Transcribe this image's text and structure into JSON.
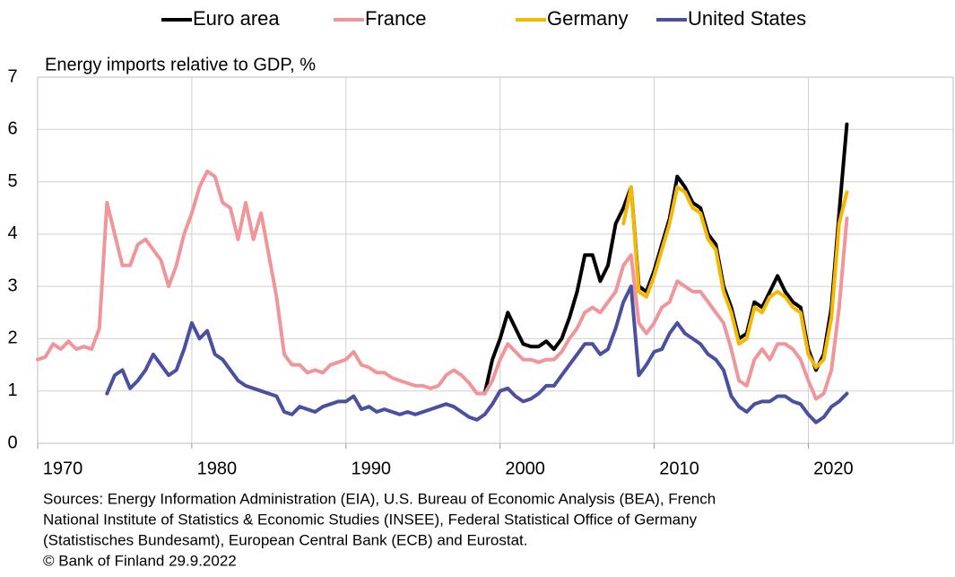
{
  "chart_data": {
    "type": "line",
    "title": "Energy imports relative to GDP, %",
    "notes": [
      "Sources: Energy Information Administration (EIA), U.S. Bureau of Economic Analysis (BEA), French",
      "National Institute of Statistics & Economic Studies (INSEE), Federal Statistical Office of Germany",
      "(Statistisches Bundesamt),  European Central Bank (ECB) and Eurostat.",
      "© Bank of Finland 29.9.2022"
    ],
    "x": [
      1970,
      1970.5,
      1971,
      1971.5,
      1972,
      1972.5,
      1973,
      1973.5,
      1974,
      1974.5,
      1975,
      1975.5,
      1976,
      1976.5,
      1977,
      1977.5,
      1978,
      1978.5,
      1979,
      1979.5,
      1980,
      1980.5,
      1981,
      1981.5,
      1982,
      1982.5,
      1983,
      1983.5,
      1984,
      1984.5,
      1985,
      1985.5,
      1986,
      1986.5,
      1987,
      1987.5,
      1988,
      1988.5,
      1989,
      1989.5,
      1990,
      1990.5,
      1991,
      1991.5,
      1992,
      1992.5,
      1993,
      1993.5,
      1994,
      1994.5,
      1995,
      1995.5,
      1996,
      1996.5,
      1997,
      1997.5,
      1998,
      1998.5,
      1999,
      1999.5,
      2000,
      2000.5,
      2001,
      2001.5,
      2002,
      2002.5,
      2003,
      2003.5,
      2004,
      2004.5,
      2005,
      2005.5,
      2006,
      2006.5,
      2007,
      2007.5,
      2008,
      2008.5,
      2009,
      2009.5,
      2010,
      2010.5,
      2011,
      2011.5,
      2012,
      2012.5,
      2013,
      2013.5,
      2014,
      2014.5,
      2015,
      2015.5,
      2016,
      2016.5,
      2017,
      2017.5,
      2018,
      2018.5,
      2019,
      2019.5,
      2020,
      2020.5,
      2021,
      2021.5,
      2022,
      2022.5
    ],
    "series": [
      {
        "name": "Euro area",
        "color": "#000000",
        "values": [
          null,
          null,
          null,
          null,
          null,
          null,
          null,
          null,
          null,
          null,
          null,
          null,
          null,
          null,
          null,
          null,
          null,
          null,
          null,
          null,
          null,
          null,
          null,
          null,
          null,
          null,
          null,
          null,
          null,
          null,
          null,
          null,
          null,
          null,
          null,
          null,
          null,
          null,
          null,
          null,
          null,
          null,
          null,
          null,
          null,
          null,
          null,
          null,
          null,
          null,
          null,
          null,
          null,
          null,
          null,
          null,
          null,
          null,
          0.95,
          1.6,
          2.0,
          2.5,
          2.2,
          1.9,
          1.85,
          1.85,
          1.95,
          1.8,
          2.0,
          2.4,
          2.9,
          3.6,
          3.6,
          3.1,
          3.4,
          4.2,
          4.5,
          4.9,
          3.0,
          2.9,
          3.3,
          3.8,
          4.3,
          5.1,
          4.9,
          4.6,
          4.5,
          4.0,
          3.8,
          3.0,
          2.6,
          2.0,
          2.1,
          2.7,
          2.6,
          2.9,
          3.2,
          2.9,
          2.7,
          2.6,
          1.8,
          1.4,
          1.7,
          2.6,
          4.4,
          6.1
        ]
      },
      {
        "name": "France",
        "color": "#f0959a",
        "values": [
          1.6,
          1.65,
          1.9,
          1.8,
          1.95,
          1.8,
          1.85,
          1.8,
          2.2,
          4.6,
          4.0,
          3.4,
          3.4,
          3.8,
          3.9,
          3.7,
          3.5,
          3.0,
          3.4,
          4.0,
          4.4,
          4.9,
          5.2,
          5.1,
          4.6,
          4.5,
          3.9,
          4.6,
          3.9,
          4.4,
          3.6,
          2.8,
          1.7,
          1.5,
          1.5,
          1.35,
          1.4,
          1.35,
          1.5,
          1.55,
          1.6,
          1.75,
          1.5,
          1.45,
          1.35,
          1.35,
          1.25,
          1.2,
          1.15,
          1.1,
          1.1,
          1.05,
          1.1,
          1.3,
          1.4,
          1.3,
          1.15,
          0.95,
          0.95,
          1.2,
          1.6,
          1.9,
          1.75,
          1.6,
          1.6,
          1.55,
          1.6,
          1.6,
          1.75,
          2.0,
          2.2,
          2.5,
          2.6,
          2.5,
          2.7,
          2.9,
          3.4,
          3.6,
          2.3,
          2.1,
          2.3,
          2.6,
          2.7,
          3.1,
          3.0,
          2.9,
          2.9,
          2.7,
          2.5,
          2.3,
          1.8,
          1.2,
          1.1,
          1.6,
          1.8,
          1.6,
          1.9,
          1.9,
          1.8,
          1.6,
          1.2,
          0.85,
          0.95,
          1.4,
          2.6,
          4.3
        ]
      },
      {
        "name": "Germany",
        "color": "#f5b800",
        "values": [
          null,
          null,
          null,
          null,
          null,
          null,
          null,
          null,
          null,
          null,
          null,
          null,
          null,
          null,
          null,
          null,
          null,
          null,
          null,
          null,
          null,
          null,
          null,
          null,
          null,
          null,
          null,
          null,
          null,
          null,
          null,
          null,
          null,
          null,
          null,
          null,
          null,
          null,
          null,
          null,
          null,
          null,
          null,
          null,
          null,
          null,
          null,
          null,
          null,
          null,
          null,
          null,
          null,
          null,
          null,
          null,
          null,
          null,
          null,
          null,
          null,
          null,
          null,
          null,
          null,
          null,
          null,
          null,
          null,
          null,
          null,
          null,
          null,
          null,
          null,
          null,
          4.2,
          4.9,
          2.9,
          2.8,
          3.2,
          3.7,
          4.2,
          4.9,
          4.8,
          4.5,
          4.4,
          3.9,
          3.7,
          2.9,
          2.5,
          1.9,
          2.0,
          2.6,
          2.5,
          2.8,
          2.9,
          2.8,
          2.6,
          2.5,
          1.7,
          1.45,
          1.6,
          2.4,
          4.2,
          4.8
        ]
      },
      {
        "name": "United States",
        "color": "#4a4fa0",
        "values": [
          null,
          null,
          null,
          null,
          null,
          null,
          null,
          null,
          null,
          0.95,
          1.3,
          1.4,
          1.05,
          1.2,
          1.4,
          1.7,
          1.5,
          1.3,
          1.4,
          1.8,
          2.3,
          2.0,
          2.15,
          1.7,
          1.6,
          1.4,
          1.2,
          1.1,
          1.05,
          1.0,
          0.95,
          0.9,
          0.6,
          0.55,
          0.7,
          0.65,
          0.6,
          0.7,
          0.75,
          0.8,
          0.8,
          0.9,
          0.65,
          0.7,
          0.6,
          0.65,
          0.6,
          0.55,
          0.6,
          0.55,
          0.6,
          0.65,
          0.7,
          0.75,
          0.7,
          0.6,
          0.5,
          0.45,
          0.55,
          0.75,
          1.0,
          1.05,
          0.9,
          0.8,
          0.85,
          0.95,
          1.1,
          1.1,
          1.3,
          1.5,
          1.7,
          1.9,
          1.9,
          1.7,
          1.8,
          2.2,
          2.7,
          3.0,
          1.3,
          1.5,
          1.75,
          1.8,
          2.1,
          2.3,
          2.1,
          2.0,
          1.9,
          1.7,
          1.6,
          1.4,
          0.9,
          0.7,
          0.6,
          0.75,
          0.8,
          0.8,
          0.9,
          0.9,
          0.8,
          0.75,
          0.55,
          0.4,
          0.5,
          0.7,
          0.8,
          0.95
        ]
      }
    ],
    "xlim": [
      1970,
      2029.4
    ],
    "xticks": [
      1970,
      1980,
      1990,
      2000,
      2010,
      2020
    ],
    "ylim": [
      0,
      7
    ],
    "yticks": [
      0,
      1,
      2,
      3,
      4,
      5,
      6,
      7
    ],
    "grid": true,
    "legend": "top"
  }
}
